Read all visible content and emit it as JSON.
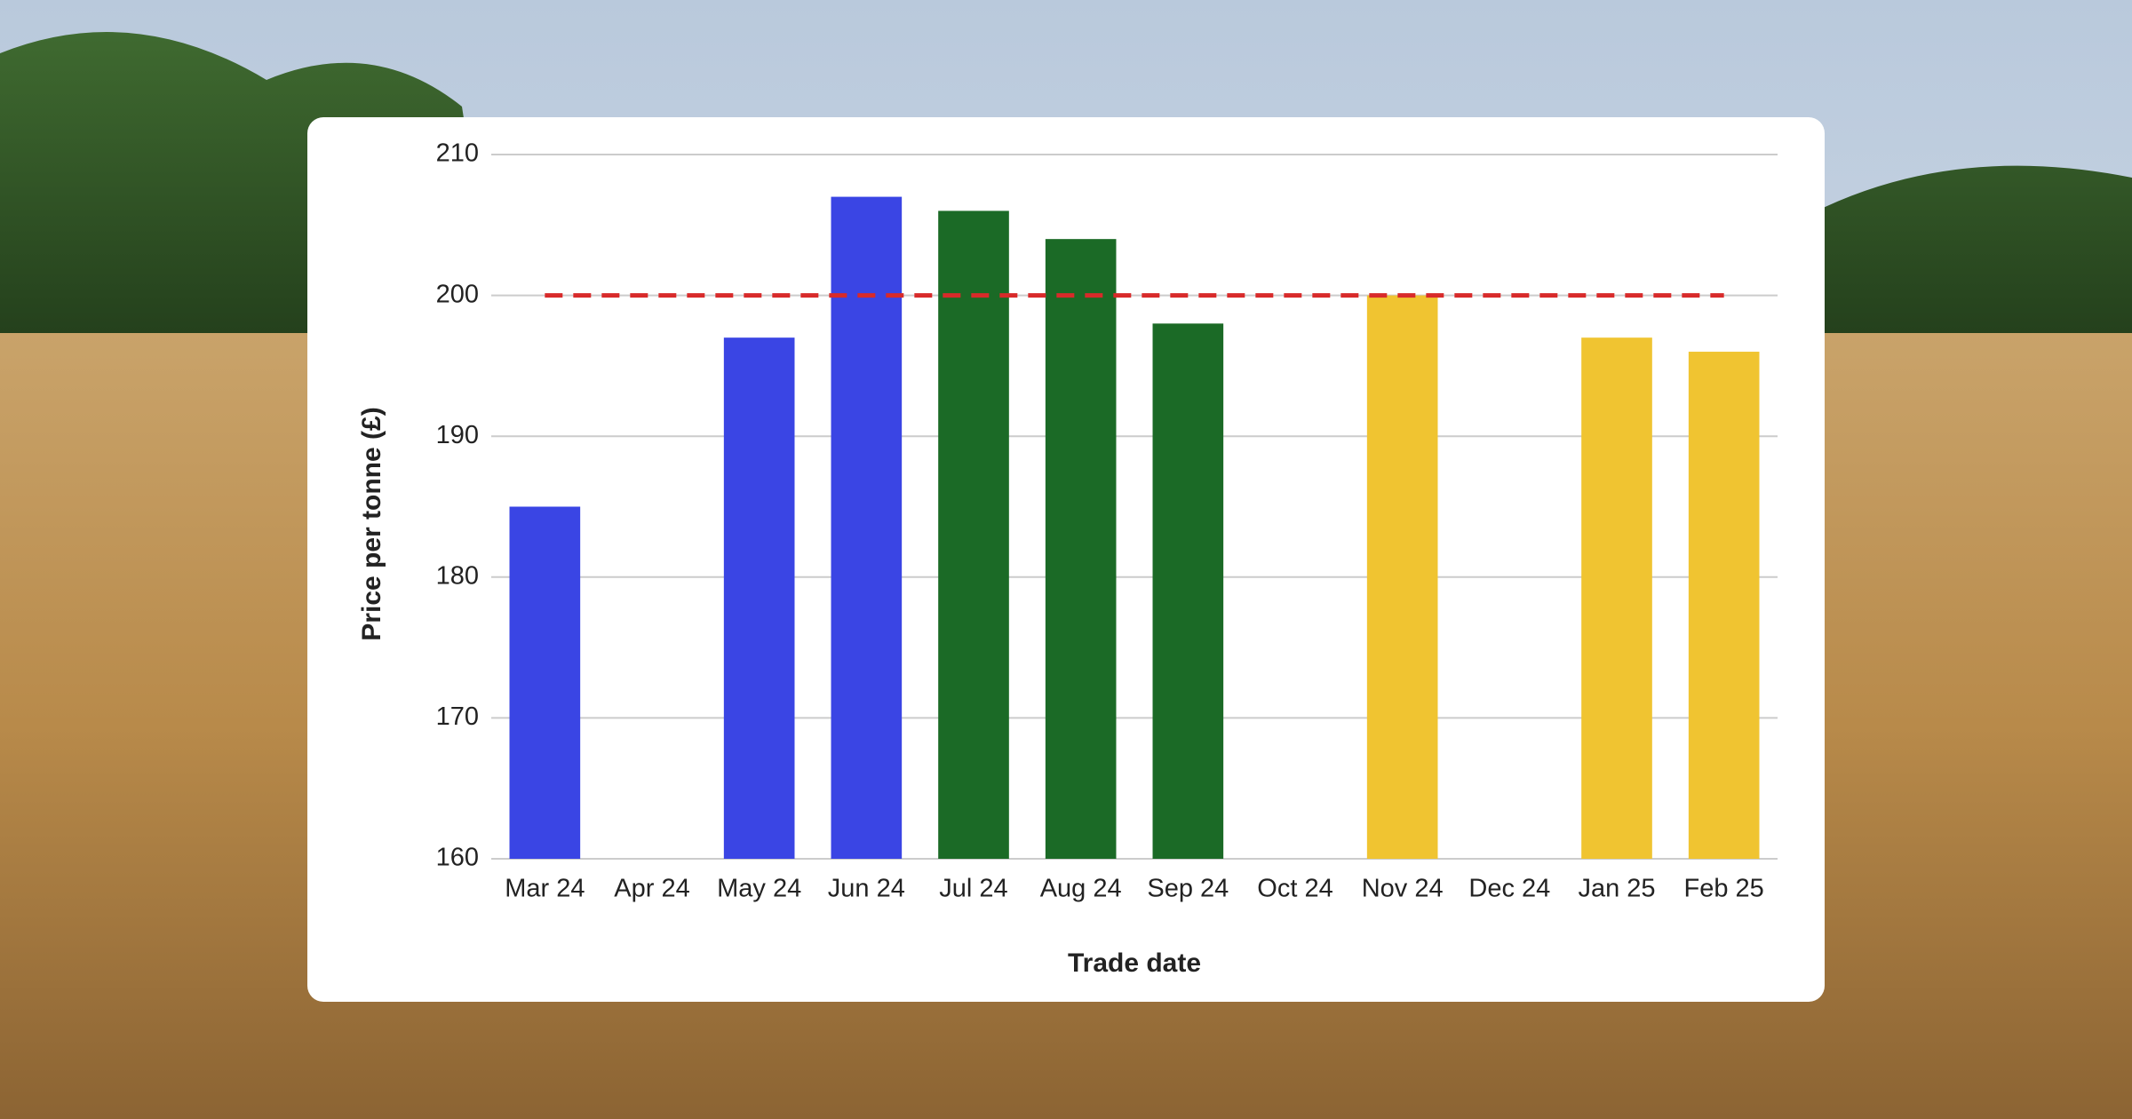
{
  "chart_data": {
    "type": "bar",
    "categories": [
      "Mar 24",
      "Apr 24",
      "May 24",
      "Jun 24",
      "Jul 24",
      "Aug 24",
      "Sep 24",
      "Oct 24",
      "Nov 24",
      "Dec 24",
      "Jan 25",
      "Feb 25"
    ],
    "values": [
      185,
      null,
      197,
      207,
      206,
      204,
      198,
      null,
      200,
      null,
      197,
      196
    ],
    "colors": [
      "#3a45e4",
      "#3a45e4",
      "#3a45e4",
      "#3a45e4",
      "#1b6a26",
      "#1b6a26",
      "#1b6a26",
      "#f0c431",
      "#f0c431",
      "#f0c431",
      "#f0c431",
      "#f0c431"
    ],
    "x_label": "Trade date",
    "y_label": "Price per tonne (£)",
    "ylim": [
      160,
      210
    ],
    "yticks": [
      160,
      170,
      180,
      190,
      200,
      210
    ],
    "grid": true,
    "reference_line": {
      "value": 200,
      "color": "#d82a2a"
    }
  }
}
